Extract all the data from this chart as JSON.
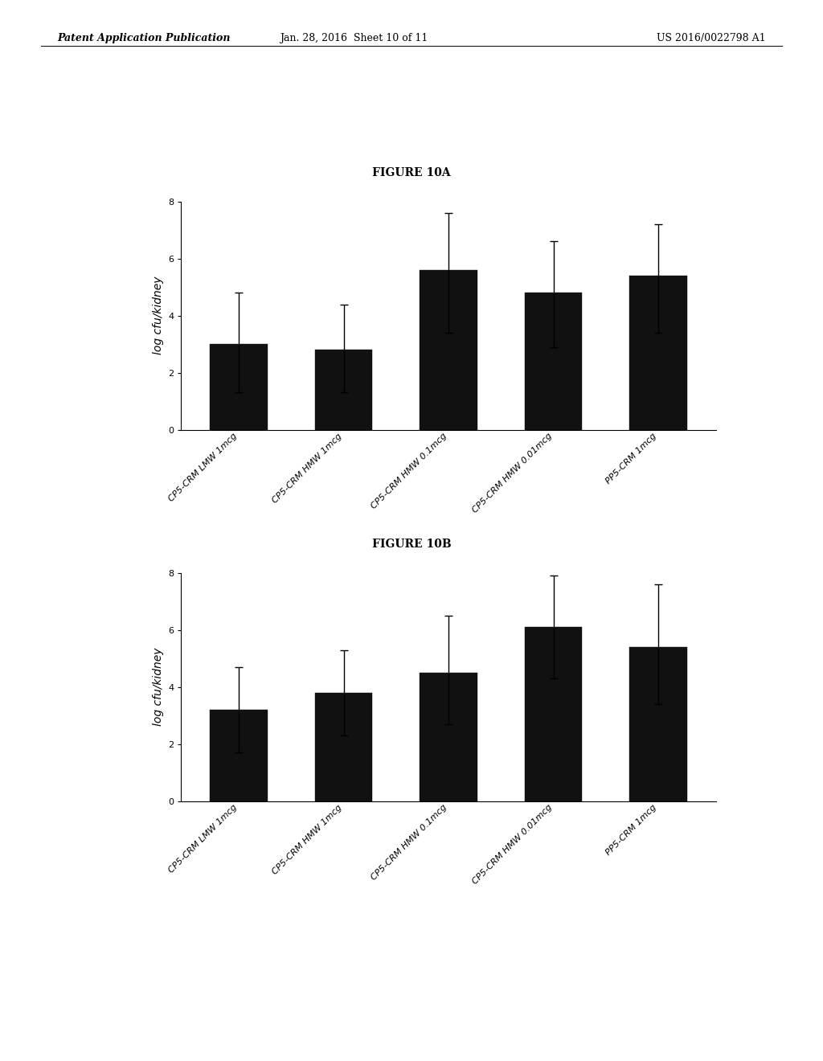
{
  "header_left": "Patent Application Publication",
  "header_mid": "Jan. 28, 2016  Sheet 10 of 11",
  "header_right": "US 2016/0022798 A1",
  "fig_title_A": "FIGURE 10A",
  "fig_title_B": "FIGURE 10B",
  "categories": [
    "CP5-CRM LMW 1mcg",
    "CP5-CRM HMW 1mcg",
    "CP5-CRM HMW 0.1mcg",
    "CP5-CRM HMW 0.01mcg",
    "PP5-CRM 1mcg"
  ],
  "ylabel": "log cfu/kidney",
  "ylim": [
    0,
    8
  ],
  "yticks": [
    0,
    2,
    4,
    6,
    8
  ],
  "figA_values": [
    3.0,
    2.8,
    5.6,
    4.8,
    5.4
  ],
  "figA_errors_low": [
    1.7,
    1.5,
    2.2,
    1.9,
    2.0
  ],
  "figA_errors_high": [
    1.8,
    1.6,
    2.0,
    1.8,
    1.8
  ],
  "figB_values": [
    3.2,
    3.8,
    4.5,
    6.1,
    5.4
  ],
  "figB_errors_low": [
    1.5,
    1.5,
    1.8,
    1.8,
    2.0
  ],
  "figB_errors_high": [
    1.5,
    1.5,
    2.0,
    1.8,
    2.2
  ],
  "bar_color": "#111111",
  "bar_width": 0.55,
  "background_color": "#ffffff",
  "header_fontsize": 9,
  "title_fontsize": 10,
  "tick_fontsize": 8,
  "ylabel_fontsize": 10
}
